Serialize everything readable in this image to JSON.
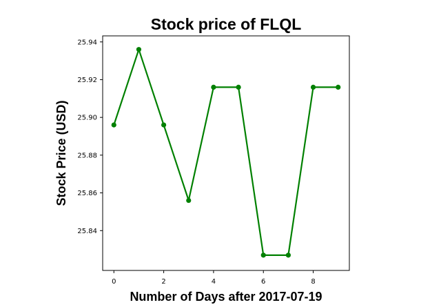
{
  "chart_data": {
    "type": "line",
    "title": "Stock price of FLQL",
    "xlabel": "Number of Days after 2017-07-19",
    "ylabel": "Stock Price (USD)",
    "x": [
      0,
      1,
      2,
      3,
      4,
      5,
      6,
      7,
      8,
      9
    ],
    "series": [
      {
        "values": [
          25.896,
          25.936,
          25.896,
          25.856,
          25.916,
          25.916,
          25.827,
          25.827,
          25.916,
          25.916
        ],
        "color": "#008000",
        "marker": "circle"
      }
    ],
    "xlim": [
      -0.45,
      9.45
    ],
    "ylim": [
      25.8189,
      25.9432
    ],
    "x_ticks": [
      0,
      2,
      4,
      6,
      8
    ],
    "y_ticks": [
      25.84,
      25.86,
      25.88,
      25.9,
      25.92,
      25.94
    ],
    "x_tick_labels": [
      "0",
      "2",
      "4",
      "6",
      "8"
    ],
    "y_tick_labels": [
      "25.84",
      "25.86",
      "25.88",
      "25.90",
      "25.92",
      "25.94"
    ],
    "grid": false,
    "legend": false
  }
}
